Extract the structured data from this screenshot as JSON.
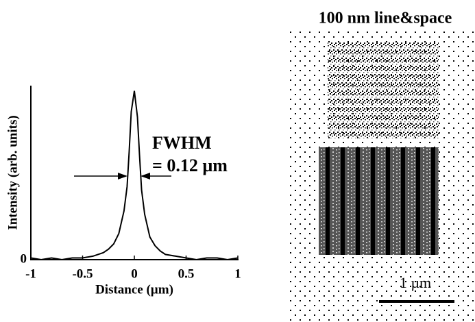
{
  "chart_data": {
    "type": "line",
    "x": [
      -1,
      -0.9,
      -0.8,
      -0.7,
      -0.6,
      -0.5,
      -0.4,
      -0.3,
      -0.25,
      -0.2,
      -0.15,
      -0.1,
      -0.07,
      -0.05,
      -0.03,
      0,
      0.03,
      0.05,
      0.07,
      0.1,
      0.15,
      0.2,
      0.25,
      0.3,
      0.4,
      0.5,
      0.6,
      0.7,
      0.8,
      0.9,
      1
    ],
    "values": [
      0.01,
      0.0,
      0.01,
      0.0,
      0.01,
      0.01,
      0.02,
      0.04,
      0.06,
      0.09,
      0.15,
      0.28,
      0.42,
      0.62,
      0.85,
      0.97,
      0.82,
      0.6,
      0.4,
      0.26,
      0.13,
      0.08,
      0.05,
      0.03,
      0.02,
      0.01,
      0.0,
      0.01,
      0.01,
      0.0,
      0.01
    ],
    "color": "#000000",
    "xlabel": "Distance (µm)",
    "ylabel": "Intensity (arb. units)",
    "xlim": [
      -1,
      1
    ],
    "xticks": [
      -1,
      -0.5,
      0,
      0.5,
      1
    ],
    "ylim": [
      0,
      1
    ],
    "yticks": [
      0
    ],
    "annotations": [
      "FWHM",
      "= 0.12 µm"
    ]
  },
  "image": {
    "title": "100 nm line&space",
    "scale_bar": "1 µm"
  }
}
